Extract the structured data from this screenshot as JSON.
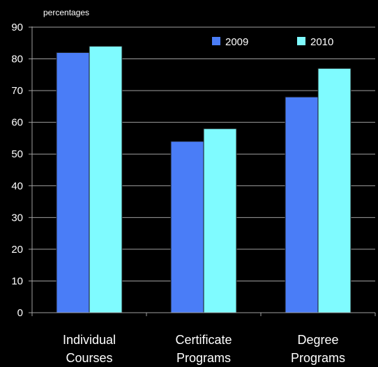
{
  "chart_data": {
    "type": "bar",
    "ylabel": "percentages",
    "ylim": [
      0,
      90
    ],
    "yticks": [
      0,
      10,
      20,
      30,
      40,
      50,
      60,
      70,
      80,
      90
    ],
    "grid": true,
    "legend": "top-right",
    "categories": [
      [
        "Individual",
        "Courses"
      ],
      [
        "Certificate",
        "Programs"
      ],
      [
        "Degree",
        "Programs"
      ]
    ],
    "series": [
      {
        "name": "2009",
        "color": "#4a7df7",
        "values": [
          82,
          54,
          68
        ]
      },
      {
        "name": "2010",
        "color": "#7ffbff",
        "values": [
          84,
          58,
          77
        ]
      }
    ]
  }
}
